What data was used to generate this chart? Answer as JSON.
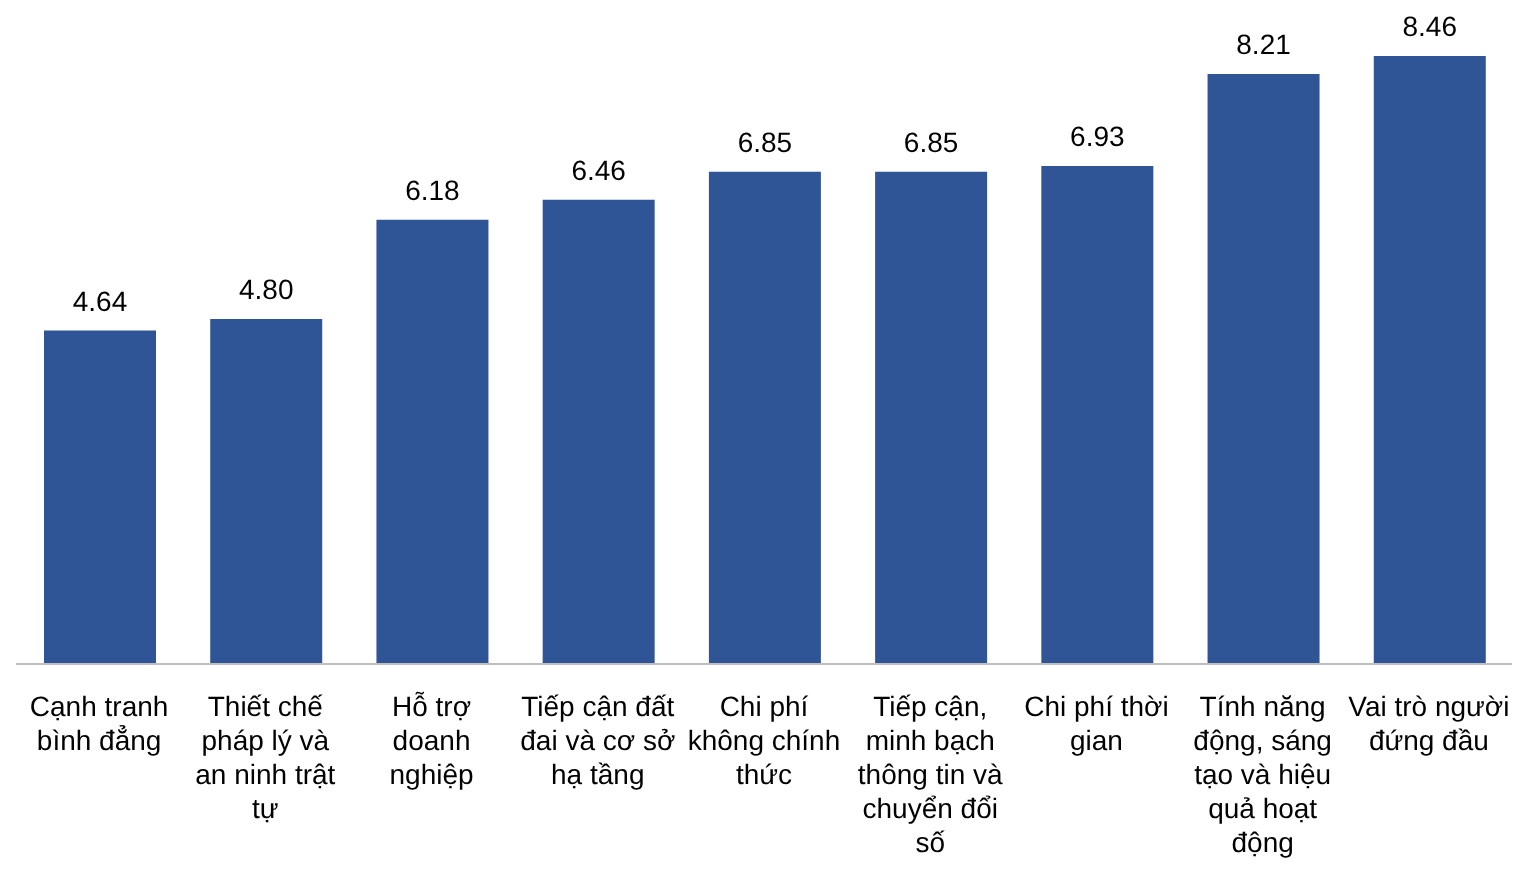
{
  "chart_data": {
    "type": "bar",
    "categories": [
      "Cạnh tranh bình đẳng",
      "Thiết chế pháp lý và an ninh trật tự",
      "Hỗ trợ doanh nghiệp",
      "Tiếp cận đất đai và cơ sở hạ tầng",
      "Chi phí không chính thức",
      "Tiếp cận, minh bạch thông tin và chuyển đổi số",
      "Chi phí thời gian",
      "Tính năng động, sáng tạo và hiệu quả hoạt động",
      "Vai trò người đứng đầu"
    ],
    "values": [
      4.64,
      4.8,
      6.18,
      6.46,
      6.85,
      6.85,
      6.93,
      8.21,
      8.46
    ],
    "value_labels": [
      "4.64",
      "4.80",
      "6.18",
      "6.46",
      "6.85",
      "6.85",
      "6.93",
      "8.21",
      "8.46"
    ],
    "color": "#2f5597",
    "grid": false,
    "legend": false
  }
}
